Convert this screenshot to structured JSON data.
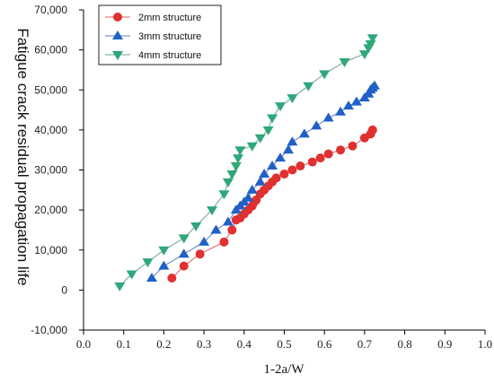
{
  "chart_data": {
    "type": "line",
    "xlabel": "1-2a/W",
    "ylabel": "Fatigue crack residual propagation life",
    "xlim": [
      0.0,
      1.0
    ],
    "ylim": [
      -10000,
      70000
    ],
    "x_ticks": [
      "0.0",
      "0.1",
      "0.2",
      "0.3",
      "0.4",
      "0.5",
      "0.6",
      "0.7",
      "0.8",
      "0.9",
      "1.0"
    ],
    "y_ticks": [
      "-10,000",
      "0",
      "10,000",
      "20,000",
      "30,000",
      "40,000",
      "50,000",
      "60,000",
      "70,000"
    ],
    "grid": false,
    "legend_position": "top-left",
    "series": [
      {
        "name": "2mm structure",
        "marker": "circle",
        "color": "#e03030",
        "line_color": "#e06060",
        "x": [
          0.22,
          0.25,
          0.29,
          0.35,
          0.37,
          0.38,
          0.39,
          0.4,
          0.41,
          0.42,
          0.425,
          0.43,
          0.44,
          0.45,
          0.46,
          0.47,
          0.48,
          0.5,
          0.52,
          0.54,
          0.57,
          0.59,
          0.61,
          0.64,
          0.67,
          0.7,
          0.715,
          0.72
        ],
        "y": [
          3000,
          6000,
          9000,
          12000,
          15000,
          17500,
          18000,
          19000,
          20000,
          21000,
          22000,
          22500,
          24000,
          25000,
          26000,
          27000,
          28000,
          29000,
          30000,
          31000,
          32000,
          33000,
          34000,
          35000,
          36000,
          38000,
          39000,
          40000
        ]
      },
      {
        "name": "3mm structure",
        "marker": "triangle-up",
        "color": "#2060c8",
        "line_color": "#6080c0",
        "x": [
          0.17,
          0.2,
          0.25,
          0.3,
          0.33,
          0.36,
          0.38,
          0.39,
          0.4,
          0.41,
          0.42,
          0.44,
          0.45,
          0.47,
          0.49,
          0.51,
          0.52,
          0.55,
          0.58,
          0.61,
          0.64,
          0.66,
          0.68,
          0.7,
          0.71,
          0.715,
          0.72,
          0.725
        ],
        "y": [
          3000,
          6000,
          9000,
          12000,
          15000,
          17000,
          20000,
          21000,
          22000,
          23000,
          25000,
          27000,
          29000,
          31000,
          33000,
          35000,
          37000,
          39000,
          41000,
          43000,
          44500,
          46000,
          47000,
          48000,
          49000,
          50000,
          50500,
          51000
        ]
      },
      {
        "name": "4mm structure",
        "marker": "triangle-down",
        "color": "#2ea878",
        "line_color": "#70a090",
        "x": [
          0.09,
          0.12,
          0.16,
          0.2,
          0.25,
          0.28,
          0.32,
          0.35,
          0.36,
          0.37,
          0.38,
          0.385,
          0.39,
          0.42,
          0.44,
          0.46,
          0.47,
          0.49,
          0.52,
          0.56,
          0.6,
          0.65,
          0.7,
          0.71,
          0.715,
          0.72
        ],
        "y": [
          1000,
          4000,
          7000,
          10000,
          13000,
          16000,
          20000,
          24000,
          27000,
          29000,
          31000,
          33000,
          35000,
          36000,
          38000,
          40000,
          43000,
          46000,
          48000,
          51000,
          54000,
          57000,
          59000,
          60500,
          61500,
          63000
        ]
      }
    ]
  }
}
